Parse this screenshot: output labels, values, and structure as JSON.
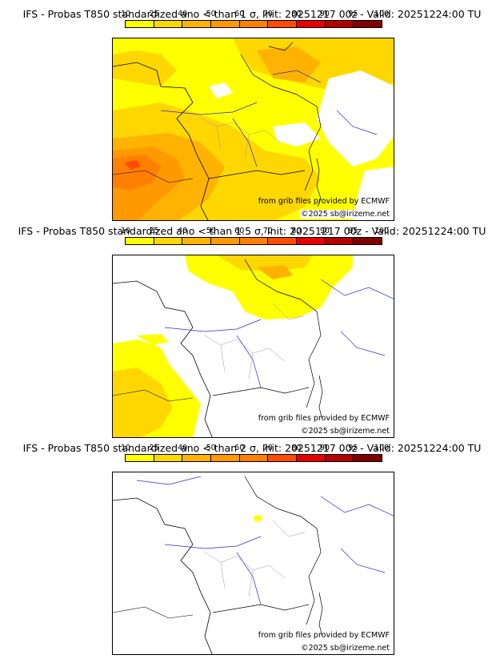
{
  "colorbar": {
    "ticks": [
      "10",
      "25",
      "40",
      "50",
      "60",
      "70",
      "80",
      "90",
      "95",
      "100"
    ],
    "colors": [
      "#ffff00",
      "#ffd700",
      "#ffb300",
      "#ff9900",
      "#ff7f00",
      "#ff4c00",
      "#e60000",
      "#b30000",
      "#800000"
    ]
  },
  "colors": {
    "rivers": "#2b2bd6",
    "borders": "#000000",
    "regions": "#9a9a9a"
  },
  "panels": [
    {
      "title": "IFS - Probas T850  standardized ano < than 1 σ, Init: 20251217 00z - Valid: 20251224:00 TU",
      "source_credit": "from grib files provided by ECMWF",
      "copyright": "©2025 sb@irizeme.net"
    },
    {
      "title": "IFS - Probas T850  standardized ano < than 1.5 σ, Init: 20251217 00z - Valid: 20251224:00 TU",
      "source_credit": "from grib files provided by ECMWF",
      "copyright": "©2025 sb@irizeme.net"
    },
    {
      "title": "IFS - Probas T850  standardized ano < than 2 σ, Init: 20251217 00z - Valid: 20251224:00 TU",
      "source_credit": "from grib files provided by ECMWF",
      "copyright": "©2025 sb@irizeme.net"
    }
  ]
}
